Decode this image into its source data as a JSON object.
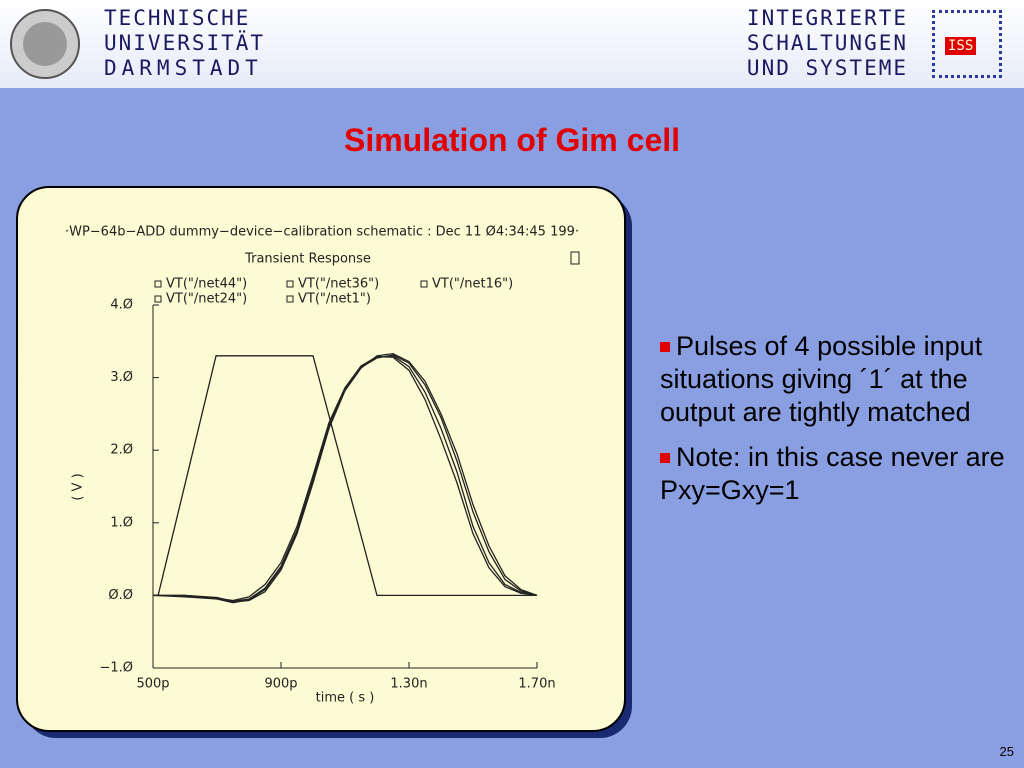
{
  "header": {
    "left": [
      "TECHNISCHE",
      "UNIVERSITÄT",
      "DARMSTADT"
    ],
    "right": [
      "INTEGRIERTE",
      "SCHALTUNGEN",
      "UND SYSTEME"
    ],
    "logo": "ISS"
  },
  "title": "Simulation of Gim cell",
  "bullets": [
    "Pulses of 4 possible input situations giving ´1´ at the output are tightly matched",
    "Note: in this case never are Pxy=Gxy=1"
  ],
  "page_number": "25",
  "chart_data": {
    "type": "line",
    "caption": "·WP−64b−ADD dummy−device−calibration schematic : Dec 11 Ø4:34:45 199·",
    "title": "Transient Response",
    "xlabel": "time ( s )",
    "ylabel": "( V )",
    "xlim": [
      0.5,
      1.7
    ],
    "xticks": [
      {
        "value": 0.5,
        "label": "500p"
      },
      {
        "value": 0.9,
        "label": "900p"
      },
      {
        "value": 1.3,
        "label": "1.30n"
      },
      {
        "value": 1.7,
        "label": "1.70n"
      }
    ],
    "ylim": [
      -1,
      4
    ],
    "yticks": [
      {
        "value": -1,
        "label": "−1.Ø"
      },
      {
        "value": 0,
        "label": "Ø.Ø"
      },
      {
        "value": 1,
        "label": "1.Ø"
      },
      {
        "value": 2,
        "label": "2.Ø"
      },
      {
        "value": 3,
        "label": "3.Ø"
      },
      {
        "value": 4,
        "label": "4.Ø"
      }
    ],
    "series": [
      {
        "name": "VT(\"/net44\")",
        "color": "#222222",
        "x": [
          0.5,
          0.6,
          0.7,
          0.75,
          0.8,
          0.85,
          0.9,
          0.95,
          1.0,
          1.05,
          1.1,
          1.15,
          1.2,
          1.25,
          1.3,
          1.35,
          1.4,
          1.45,
          1.5,
          1.55,
          1.6,
          1.65,
          1.7
        ],
        "values": [
          0,
          0,
          -0.03,
          -0.08,
          -0.05,
          0.1,
          0.4,
          0.9,
          1.6,
          2.35,
          2.85,
          3.15,
          3.28,
          3.3,
          3.15,
          2.8,
          2.3,
          1.7,
          0.95,
          0.45,
          0.15,
          0.04,
          0
        ]
      },
      {
        "name": "VT(\"/net36\")",
        "color": "#222222",
        "x": [
          0.5,
          0.6,
          0.7,
          0.75,
          0.8,
          0.85,
          0.9,
          0.95,
          1.0,
          1.05,
          1.1,
          1.15,
          1.2,
          1.25,
          1.3,
          1.35,
          1.4,
          1.45,
          1.5,
          1.55,
          1.6,
          1.65,
          1.7
        ],
        "values": [
          0,
          -0.02,
          -0.05,
          -0.1,
          -0.06,
          0.08,
          0.38,
          0.88,
          1.58,
          2.33,
          2.84,
          3.14,
          3.27,
          3.31,
          3.2,
          2.9,
          2.45,
          1.85,
          1.15,
          0.6,
          0.22,
          0.06,
          0
        ]
      },
      {
        "name": "VT(\"/net16\")",
        "color": "#222222",
        "x": [
          0.5,
          0.6,
          0.7,
          0.75,
          0.8,
          0.85,
          0.9,
          0.95,
          1.0,
          1.05,
          1.1,
          1.15,
          1.2,
          1.25,
          1.3,
          1.35,
          1.4,
          1.45,
          1.5,
          1.55,
          1.6,
          1.65,
          1.7
        ],
        "values": [
          0,
          0,
          -0.04,
          -0.07,
          -0.02,
          0.15,
          0.45,
          0.95,
          1.65,
          2.38,
          2.86,
          3.16,
          3.29,
          3.28,
          3.1,
          2.7,
          2.15,
          1.55,
          0.85,
          0.38,
          0.12,
          0.03,
          0
        ]
      },
      {
        "name": "VT(\"/net24\")",
        "color": "#222222",
        "x": [
          0.5,
          0.516,
          0.697,
          1.0,
          1.2,
          1.7
        ],
        "values": [
          0,
          0,
          3.3,
          3.3,
          0,
          0
        ]
      },
      {
        "name": "VT(\"/net1\")",
        "color": "#222222",
        "x": [
          0.5,
          0.6,
          0.7,
          0.75,
          0.8,
          0.85,
          0.9,
          0.95,
          1.0,
          1.05,
          1.1,
          1.15,
          1.2,
          1.25,
          1.3,
          1.35,
          1.4,
          1.45,
          1.5,
          1.55,
          1.6,
          1.65,
          1.7
        ],
        "values": [
          0,
          -0.01,
          -0.04,
          -0.09,
          -0.07,
          0.05,
          0.35,
          0.85,
          1.55,
          2.3,
          2.82,
          3.13,
          3.3,
          3.33,
          3.22,
          2.95,
          2.5,
          1.95,
          1.25,
          0.68,
          0.27,
          0.08,
          0
        ]
      }
    ]
  }
}
